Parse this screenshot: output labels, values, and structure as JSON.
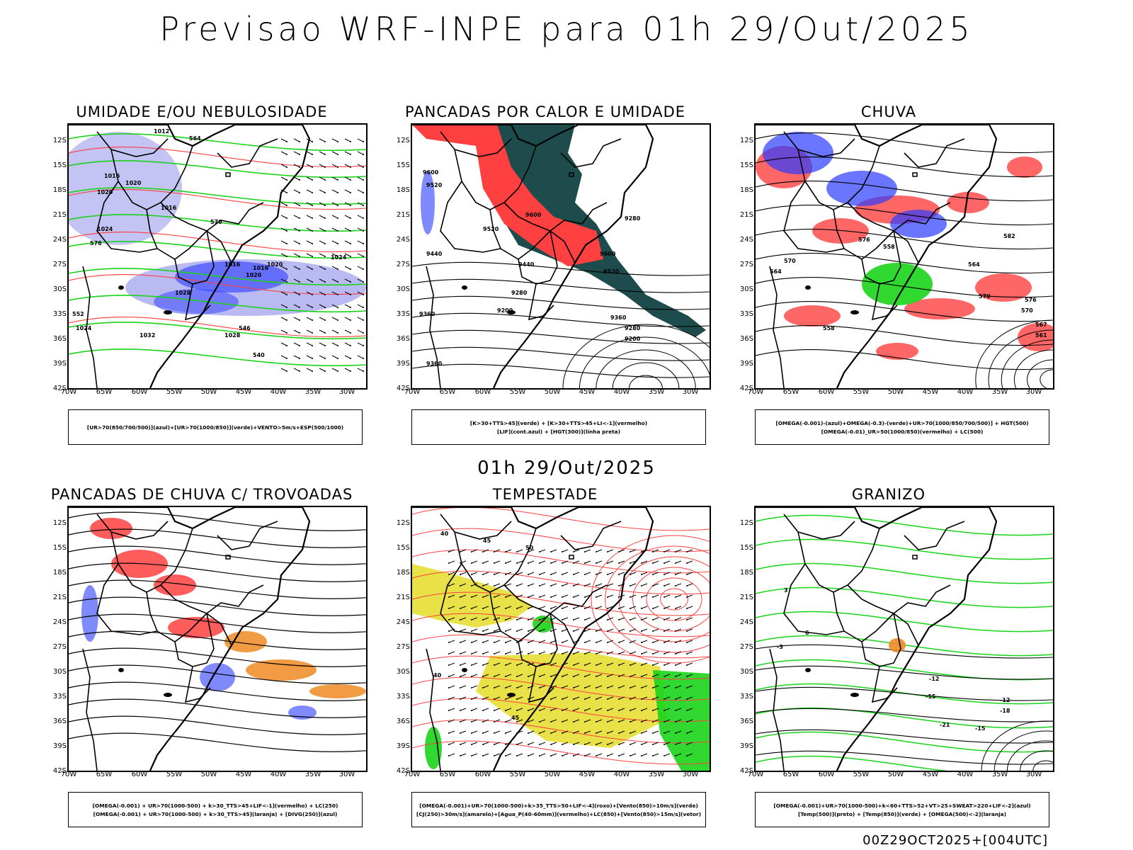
{
  "page": {
    "title": "Previsao WRF-INPE  para 01h 29/Out/2025",
    "mid_label": "01h 29/Out/2025",
    "footer": "00Z29OCT2025+[004UTC]"
  },
  "axes": {
    "lat_labels": [
      "12S",
      "15S",
      "18S",
      "21S",
      "24S",
      "27S",
      "30S",
      "33S",
      "36S",
      "39S",
      "42S"
    ],
    "lon_labels": [
      "70W",
      "65W",
      "60W",
      "55W",
      "50W",
      "45W",
      "40W",
      "35W",
      "30W"
    ]
  },
  "panels": [
    {
      "title": "UMIDADE E/OU NEBULOSIDADE",
      "legend": [
        "[UR>70(850/700/500)](azul)+[UR>70(1000/850)](verde)+VENTO>5m/s+ESP(500/1000)"
      ],
      "contour_labels": [
        "1012",
        "1016",
        "1020",
        "1020",
        "1016",
        "1024",
        "1028",
        "1016",
        "1020",
        "1024",
        "1028",
        "1032",
        "1024",
        "1020",
        "1016",
        "552",
        "564",
        "570",
        "576",
        "546",
        "540"
      ]
    },
    {
      "title": "PANCADAS POR CALOR E UMIDADE",
      "legend": [
        "[K>30+TTS>45](verde) + [K>30+TTS>45+LI<-1](vermelho)",
        "[LIF](cont.azul) + [HGT(300)](linha preta)"
      ],
      "contour_labels": [
        "9600",
        "9520",
        "9440",
        "9600",
        "9520",
        "9440",
        "9360",
        "9280",
        "9200",
        "9360",
        "9280",
        "9200",
        "9360",
        "9280",
        "9600",
        "9520"
      ]
    },
    {
      "title": "CHUVA",
      "legend": [
        "[OMEGA(-0.001)-(azul)+OMEGA(-0.3)-(verde)+UR>70(1000/850/700/500)] + HGT(500)",
        "[OMEGA(-0.01)_UR>50(1000/850)(vermelho) + LC(500)"
      ],
      "contour_labels": [
        "582",
        "576",
        "570",
        "564",
        "558",
        "576",
        "570",
        "567",
        "561",
        "558",
        "564",
        "570"
      ]
    },
    {
      "title": "PANCADAS DE CHUVA C/ TROVOADAS",
      "legend": [
        "[OMEGA(-0.001) + UR>70(1000-500) + k>30_TTS>45+LIF<-1](vermelho) + LC(250)",
        "[OMEGA(-0.001) + UR>70(1000-500) + k>30_TTS>45](laranja) + [DIVG(250)](azul)"
      ],
      "contour_labels": []
    },
    {
      "title": "TEMPESTADE",
      "legend": [
        "[OMEGA(-0.001)+UR>70(1000-500)+k>35_TTS>50+LIF<-4](roxo)+[Vento(850)>10m/s](verde)",
        "[CJ(250)>30m/s](amarelo)+[Agua_P(40-60mm)](vermelho)+LC(850)+[Vento(850)>15m/s](vetor)"
      ],
      "contour_labels": [
        "40",
        "45",
        "50",
        "40",
        "45"
      ]
    },
    {
      "title": "GRANIZO",
      "legend": [
        "[OMEGA(-0.001)+UR>70(1000-500)+k<60+TTS>52+VT>25+SWEAT>220+LIF<-2](azul)",
        "[Temp(500)](preto) + [Temp(850)](verde) + [OMEGA(500)<-2](laranja)"
      ],
      "contour_labels": [
        "-12",
        "-15",
        "-12",
        "-18",
        "-15",
        "-21",
        "-3",
        "3",
        "6"
      ]
    }
  ],
  "colors": {
    "blue": "#2b3cff",
    "light_blue": "#a9a9f0",
    "green": "#19d419",
    "red": "#ff4040",
    "dark_teal": "#1e4b4b",
    "orange": "#f08a24",
    "yellow": "#e4dc28"
  }
}
